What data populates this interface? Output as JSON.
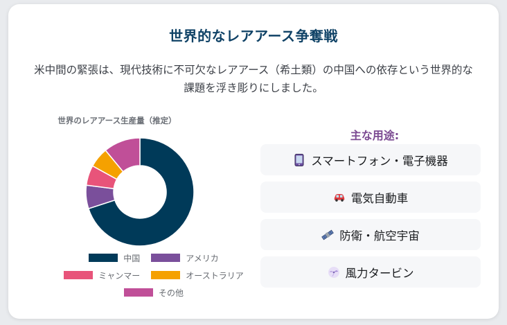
{
  "title": "世界的なレアアース争奪戦",
  "description": "米中間の緊張は、現代技術に不可欠なレアアース（希土類）の中国への依存という世界的な課題を浮き彫りにしました。",
  "chart_data": {
    "type": "pie",
    "title": "世界のレアアース生産量（推定）",
    "categories": [
      "中国",
      "アメリカ",
      "ミャンマー",
      "オーストラリア",
      "その他"
    ],
    "values": [
      70,
      7,
      6,
      6,
      11
    ],
    "colors": [
      "#003a59",
      "#7a4f9b",
      "#e8547a",
      "#f5a100",
      "#c04f98"
    ],
    "donut": true
  },
  "uses": {
    "title": "主な用途:",
    "items": [
      {
        "icon": "smartphone-icon",
        "label": "スマートフォン・電子機器"
      },
      {
        "icon": "car-icon",
        "label": "電気自動車"
      },
      {
        "icon": "satellite-icon",
        "label": "防衛・航空宇宙"
      },
      {
        "icon": "wind-turbine-icon",
        "label": "風力タービン"
      }
    ]
  }
}
